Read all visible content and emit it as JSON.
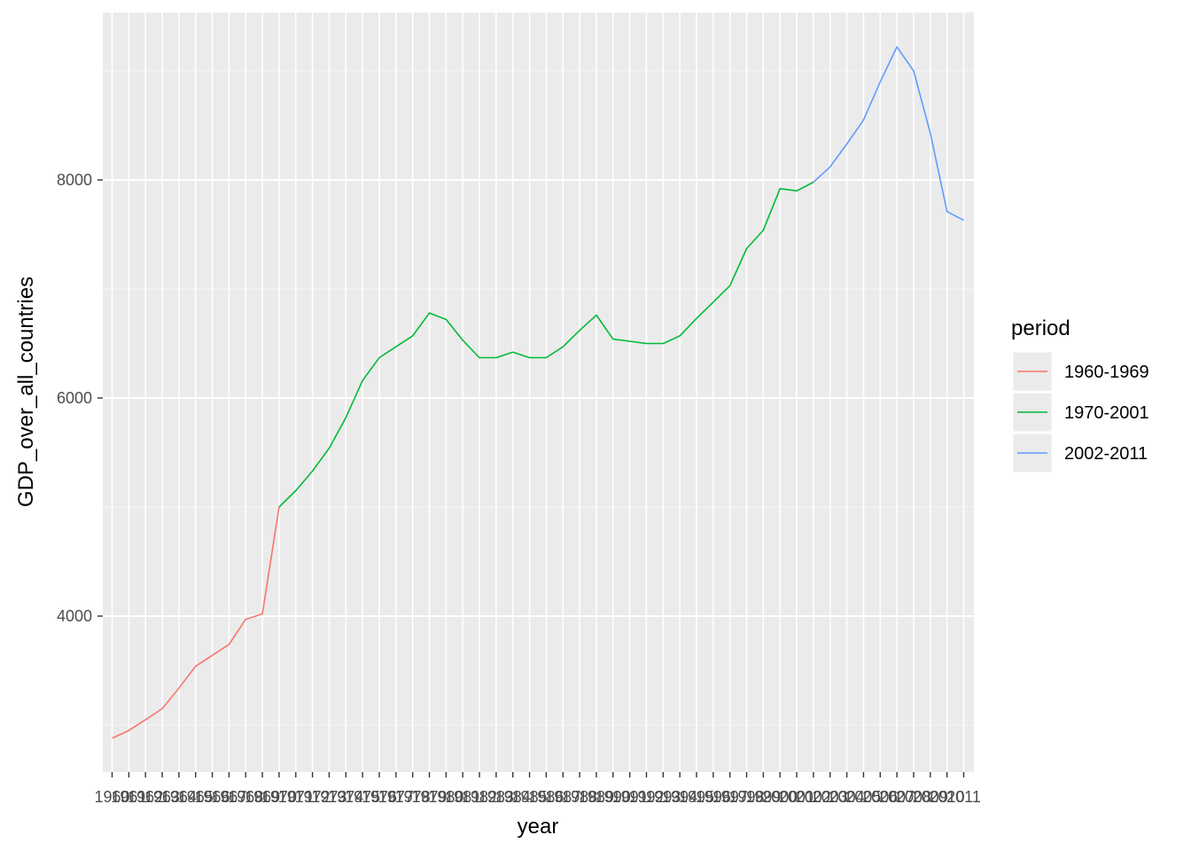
{
  "chart_data": {
    "type": "line",
    "title": "",
    "xlabel": "year",
    "ylabel": "GDP_over_all_countries",
    "ylim": [
      2600,
      9600
    ],
    "y_ticks": [
      4000,
      6000,
      8000
    ],
    "y_tick_labels": [
      "4000",
      "6000",
      "8000"
    ],
    "grid": true,
    "legend": {
      "title": "period",
      "position": "right"
    },
    "categories": [
      "1960",
      "1961",
      "1962",
      "1963",
      "1964",
      "1965",
      "1966",
      "1967",
      "1968",
      "1969",
      "1970",
      "1971",
      "1972",
      "1973",
      "1974",
      "1975",
      "1976",
      "1977",
      "1978",
      "1979",
      "1980",
      "1981",
      "1982",
      "1983",
      "1984",
      "1985",
      "1986",
      "1987",
      "1988",
      "1989",
      "1990",
      "1991",
      "1992",
      "1993",
      "1994",
      "1995",
      "1996",
      "1997",
      "1998",
      "1999",
      "2000",
      "2001",
      "2002",
      "2003",
      "2004",
      "2005",
      "2006",
      "2007",
      "2008",
      "2009",
      "2010",
      "2011"
    ],
    "series": [
      {
        "name": "1960-1969",
        "color": "#F8766D",
        "x": [
          "1960",
          "1961",
          "1962",
          "1963",
          "1964",
          "1965",
          "1966",
          "1967",
          "1968",
          "1969",
          "1970"
        ],
        "values": [
          2880,
          2950,
          3050,
          3150,
          3340,
          3540,
          3640,
          3740,
          3970,
          4020,
          5000
        ]
      },
      {
        "name": "1970-2001",
        "color": "#00BA38",
        "x": [
          "1970",
          "1971",
          "1972",
          "1973",
          "1974",
          "1975",
          "1976",
          "1977",
          "1978",
          "1979",
          "1980",
          "1981",
          "1982",
          "1983",
          "1984",
          "1985",
          "1986",
          "1987",
          "1988",
          "1989",
          "1990",
          "1991",
          "1992",
          "1993",
          "1994",
          "1995",
          "1996",
          "1997",
          "1998",
          "1999",
          "2000",
          "2001",
          "2002"
        ],
        "values": [
          5000,
          5150,
          5330,
          5540,
          5820,
          6160,
          6370,
          6470,
          6570,
          6780,
          6720,
          6530,
          6370,
          6370,
          6420,
          6370,
          6370,
          6470,
          6620,
          6760,
          6540,
          6520,
          6500,
          6500,
          6570,
          6730,
          6880,
          7030,
          7370,
          7540,
          7920,
          7900,
          7980
        ]
      },
      {
        "name": "2002-2011",
        "color": "#619CFF",
        "x": [
          "2002",
          "2003",
          "2004",
          "2005",
          "2006",
          "2007",
          "2008",
          "2009",
          "2010",
          "2011"
        ],
        "values": [
          7980,
          8120,
          8330,
          8550,
          8900,
          9220,
          9000,
          8430,
          7710,
          7630
        ]
      }
    ]
  }
}
